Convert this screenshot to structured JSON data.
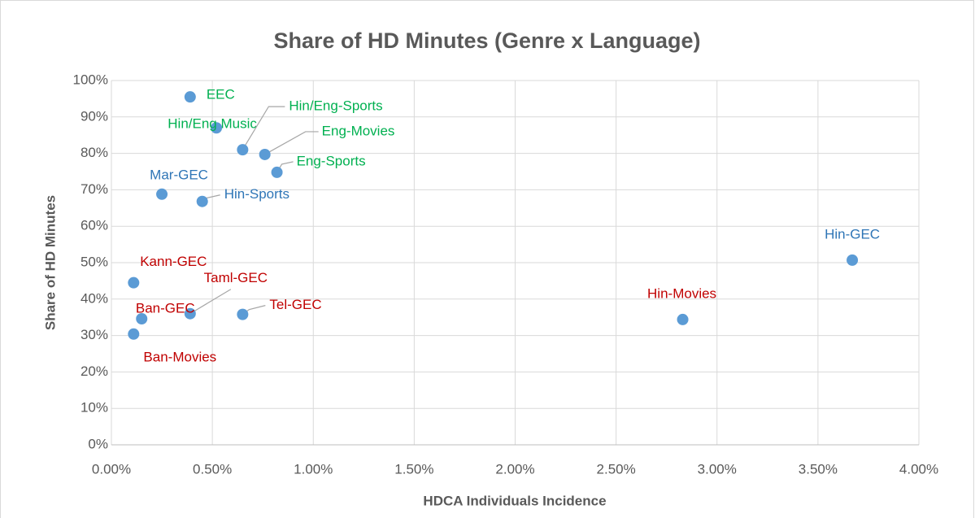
{
  "chart_data": {
    "type": "scatter",
    "title": "Share of HD Minutes (Genre x Language)",
    "x_label": "HDCA Individuals Incidence",
    "y_label": "Share of HD Minutes",
    "series": [
      {
        "color": "#5b9bd5",
        "x": [
          0.39,
          0.52,
          0.65,
          0.76,
          0.82,
          0.25,
          0.45,
          3.67,
          0.11,
          0.39,
          0.15,
          0.65,
          0.11,
          2.83
        ],
        "values": [
          95.5,
          87,
          81,
          79.7,
          74.8,
          68.8,
          66.8,
          50.7,
          44.5,
          36,
          34.6,
          35.8,
          30.4,
          34.4
        ],
        "labels": [
          "EEC",
          "Hin/Eng Music",
          "Hin/Eng-Sports",
          "Eng-Movies",
          "Eng-Sports",
          "Mar-GEC",
          "Hin-Sports",
          "Hin-GEC",
          "Kann-GEC",
          "Taml-GEC",
          "Ban-GEC",
          "Tel-GEC",
          "Ban-Movies",
          "Hin-Movies"
        ],
        "label_colors": [
          "#00b050",
          "#00b050",
          "#00b050",
          "#00b050",
          "#00b050",
          "#2e75b6",
          "#2e75b6",
          "#2e75b6",
          "#c00000",
          "#c00000",
          "#c00000",
          "#c00000",
          "#c00000",
          "#c00000"
        ]
      }
    ],
    "xlim": [
      0,
      4
    ],
    "xticks": [
      {
        "value": 0,
        "label": "0.00%"
      },
      {
        "value": 0.5,
        "label": "0.50%"
      },
      {
        "value": 1,
        "label": "1.00%"
      },
      {
        "value": 1.5,
        "label": "1.50%"
      },
      {
        "value": 2,
        "label": "2.00%"
      },
      {
        "value": 2.5,
        "label": "2.50%"
      },
      {
        "value": 3,
        "label": "3.00%"
      },
      {
        "value": 3.5,
        "label": "3.50%"
      },
      {
        "value": 4,
        "label": "4.00%"
      }
    ],
    "ylim": [
      0,
      100
    ],
    "yticks": [
      {
        "value": 0,
        "label": "0%"
      },
      {
        "value": 10,
        "label": "10%"
      },
      {
        "value": 20,
        "label": "20%"
      },
      {
        "value": 30,
        "label": "30%"
      },
      {
        "value": 40,
        "label": "40%"
      },
      {
        "value": 50,
        "label": "50%"
      },
      {
        "value": 60,
        "label": "60%"
      },
      {
        "value": 70,
        "label": "70%"
      },
      {
        "value": 80,
        "label": "80%"
      },
      {
        "value": 90,
        "label": "90%"
      },
      {
        "value": 100,
        "label": "100%"
      }
    ],
    "grid": true
  }
}
